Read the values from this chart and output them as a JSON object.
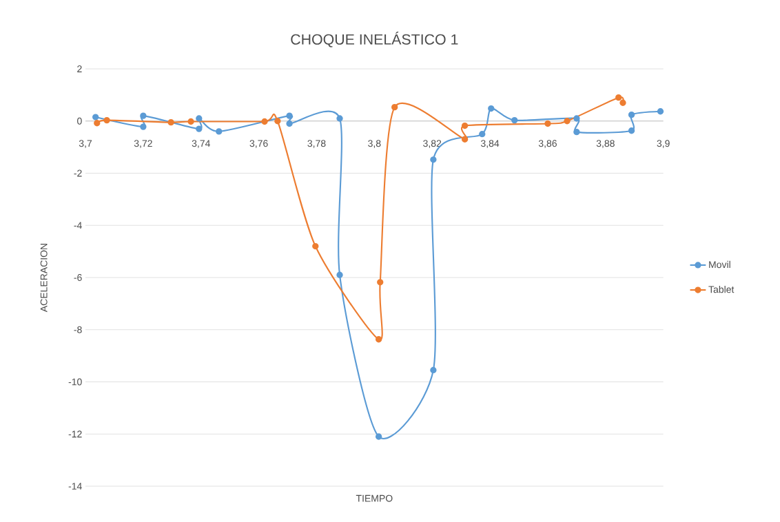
{
  "chart_data": {
    "type": "line",
    "title": "CHOQUE INELÁSTICO 1",
    "xlabel": "TIEMPO",
    "ylabel": "ACELERACION",
    "xlim": [
      3.7,
      3.9
    ],
    "xticks": [
      {
        "value": 3.7,
        "label": "3,7"
      },
      {
        "value": 3.72,
        "label": "3,72"
      },
      {
        "value": 3.74,
        "label": "3,74"
      },
      {
        "value": 3.76,
        "label": "3,76"
      },
      {
        "value": 3.78,
        "label": "3,78"
      },
      {
        "value": 3.8,
        "label": "3,8"
      },
      {
        "value": 3.82,
        "label": "3,82"
      },
      {
        "value": 3.84,
        "label": "3,84"
      },
      {
        "value": 3.86,
        "label": "3,86"
      },
      {
        "value": 3.88,
        "label": "3,88"
      },
      {
        "value": 3.9,
        "label": "3,9"
      }
    ],
    "ylim": [
      -14,
      2
    ],
    "yticks": [
      2,
      0,
      -2,
      -4,
      -6,
      -8,
      -10,
      -12,
      -14
    ],
    "grid": "y",
    "legend": "right",
    "marker": "circle",
    "series": [
      {
        "name": "Movil",
        "color": "#5b9bd5",
        "x": [
          3.7035,
          3.72,
          3.72,
          3.7393,
          3.7393,
          3.7462,
          3.7706,
          3.7706,
          3.788,
          3.788,
          3.8015,
          3.8204,
          3.8204,
          3.8373,
          3.8404,
          3.8485,
          3.87,
          3.87,
          3.889,
          3.889,
          3.899
        ],
        "values": [
          0.15,
          -0.22,
          0.2,
          -0.3,
          0.1,
          -0.4,
          0.2,
          -0.1,
          0.1,
          -5.9,
          -12.1,
          -9.55,
          -1.48,
          -0.5,
          0.48,
          0.03,
          0.1,
          -0.42,
          -0.37,
          0.24,
          0.37
        ]
      },
      {
        "name": "Tablet",
        "color": "#ed7d31",
        "x": [
          3.704,
          3.7074,
          3.7296,
          3.7365,
          3.762,
          3.7665,
          3.7796,
          3.8015,
          3.802,
          3.807,
          3.8313,
          3.8313,
          3.86,
          3.8667,
          3.8845,
          3.886
        ],
        "values": [
          -0.08,
          0.03,
          -0.05,
          -0.02,
          -0.02,
          0.0,
          -4.8,
          -8.37,
          -6.18,
          0.53,
          -0.7,
          -0.18,
          -0.1,
          0.0,
          0.9,
          0.7
        ]
      }
    ]
  }
}
